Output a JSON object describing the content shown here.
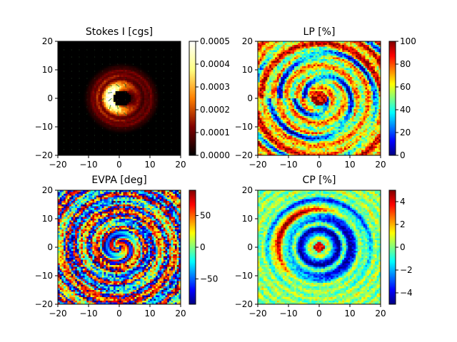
{
  "chart_data": [
    {
      "type": "heatmap",
      "title": "Stokes I [cgs]",
      "xlim": [
        -20,
        20
      ],
      "ylim": [
        -20,
        20
      ],
      "xticks": [
        "−20",
        "−10",
        "0",
        "10",
        "20"
      ],
      "yticks": [
        "−20",
        "−10",
        "0",
        "10",
        "20"
      ],
      "colormap": "afmhot",
      "clim": [
        0,
        0.0005
      ],
      "colorbar_ticks": [
        "0.0000",
        "0.0001",
        "0.0002",
        "0.0003",
        "0.0004",
        "0.0005"
      ],
      "features": "bright ring around a dark central shadow near (1,0), brightest on the left, faint outer rings at r~8 and r~9; EVPA tick marks overlaid on the bright ring"
    },
    {
      "type": "heatmap",
      "title": "LP [%]",
      "xlim": [
        -20,
        20
      ],
      "ylim": [
        -20,
        20
      ],
      "xticks": [
        "−20",
        "−10",
        "0",
        "10",
        "20"
      ],
      "yticks": [
        "−20",
        "−10",
        "0",
        "10",
        "20"
      ],
      "colormap": "jet",
      "clim": [
        0,
        100
      ],
      "colorbar_ticks": [
        "0",
        "20",
        "40",
        "60",
        "80",
        "100"
      ],
      "features": "concentric rings of mostly 50-80% with blue low-polarization arcs, red patch near center and at outer corners"
    },
    {
      "type": "heatmap",
      "title": "EVPA [deg]",
      "xlim": [
        -20,
        20
      ],
      "ylim": [
        -20,
        20
      ],
      "xticks": [
        "−20",
        "−10",
        "0",
        "10",
        "20"
      ],
      "yticks": [
        "−20",
        "−10",
        "0",
        "10",
        "20"
      ],
      "colormap": "jet",
      "clim": [
        -90,
        90
      ],
      "colorbar_ticks": [
        "−50",
        "0",
        "50"
      ],
      "features": "angle swirl around the center with a discontinuity to the right, noisy concentric rings outward"
    },
    {
      "type": "heatmap",
      "title": "CP [%]",
      "xlim": [
        -20,
        20
      ],
      "ylim": [
        -20,
        20
      ],
      "xticks": [
        "−20",
        "−10",
        "0",
        "10",
        "20"
      ],
      "yticks": [
        "−20",
        "−10",
        "0",
        "10",
        "20"
      ],
      "colormap": "jet",
      "clim": [
        -5,
        5
      ],
      "colorbar_ticks": [
        "−4",
        "−2",
        "0",
        "2",
        "4"
      ],
      "features": "strong negative (dark blue) rings at r~6 and r~10, positive red arcs at r~12-15 on the left and lower-left, near-zero elsewhere, small positive patch at center"
    }
  ]
}
